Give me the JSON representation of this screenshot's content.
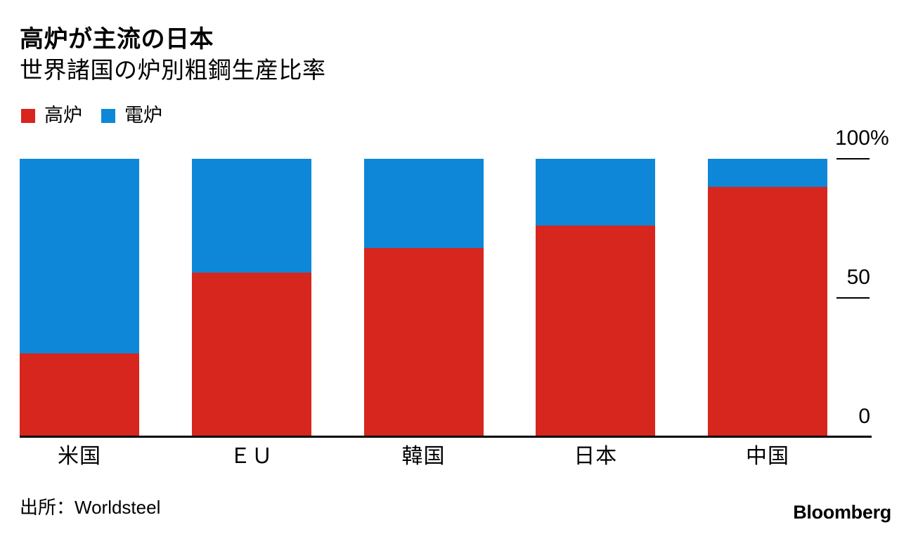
{
  "header": {
    "title": "高炉が主流の日本",
    "subtitle": "世界諸国の炉別粗鋼生産比率"
  },
  "legend": {
    "items": [
      {
        "label": "高炉",
        "color": "#d7261d"
      },
      {
        "label": "電炉",
        "color": "#0e87d8"
      }
    ]
  },
  "chart_data": {
    "type": "bar",
    "stacked": true,
    "orientation": "vertical",
    "title": "高炉が主流の日本",
    "subtitle": "世界諸国の炉別粗鋼生産比率",
    "categories": [
      "米国",
      "ＥＵ",
      "韓国",
      "日本",
      "中国"
    ],
    "series": [
      {
        "name": "高炉",
        "color": "#d7261d",
        "values": [
          30,
          59,
          68,
          76,
          90
        ]
      },
      {
        "name": "電炉",
        "color": "#0e87d8",
        "values": [
          70,
          41,
          32,
          24,
          10
        ]
      }
    ],
    "unit": "%",
    "ylim": [
      0,
      100
    ],
    "yticks": [
      {
        "value": 100,
        "label": "100",
        "suffix": "%"
      },
      {
        "value": 50,
        "label": "50",
        "suffix": ""
      },
      {
        "value": 0,
        "label": "0",
        "suffix": ""
      }
    ],
    "legend_position": "top-left",
    "grid": false
  },
  "footer": {
    "source": "出所：Worldsteel",
    "brand": "Bloomberg"
  }
}
